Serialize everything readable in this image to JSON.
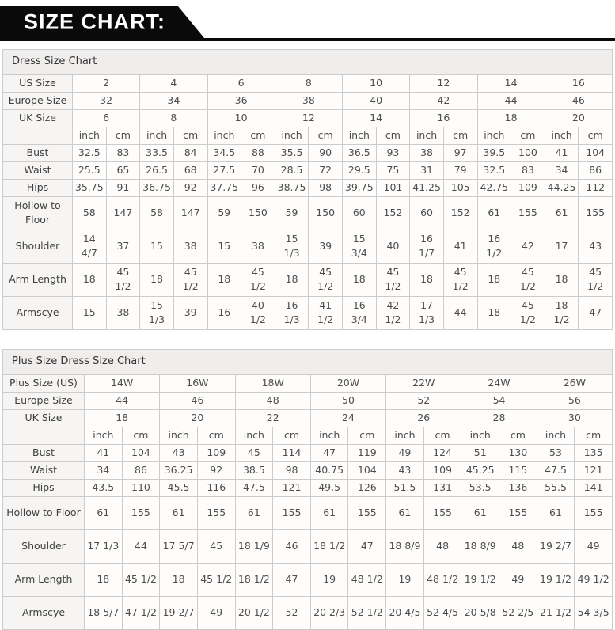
{
  "banner": {
    "title": "SIZE CHART:"
  },
  "unit_headers": [
    "inch",
    "cm"
  ],
  "tables": [
    {
      "title": "Dress Size Chart",
      "size_rows": [
        {
          "label": "US Size",
          "values": [
            "2",
            "4",
            "6",
            "8",
            "10",
            "12",
            "14",
            "16"
          ]
        },
        {
          "label": "Europe Size",
          "values": [
            "32",
            "34",
            "36",
            "38",
            "40",
            "42",
            "44",
            "46"
          ]
        },
        {
          "label": "UK Size",
          "values": [
            "6",
            "8",
            "10",
            "12",
            "14",
            "16",
            "18",
            "20"
          ]
        }
      ],
      "measurement_rows": [
        {
          "label": "Bust",
          "values": [
            "32.5",
            "83",
            "33.5",
            "84",
            "34.5",
            "88",
            "35.5",
            "90",
            "36.5",
            "93",
            "38",
            "97",
            "39.5",
            "100",
            "41",
            "104"
          ]
        },
        {
          "label": "Waist",
          "values": [
            "25.5",
            "65",
            "26.5",
            "68",
            "27.5",
            "70",
            "28.5",
            "72",
            "29.5",
            "75",
            "31",
            "79",
            "32.5",
            "83",
            "34",
            "86"
          ]
        },
        {
          "label": "Hips",
          "values": [
            "35.75",
            "91",
            "36.75",
            "92",
            "37.75",
            "96",
            "38.75",
            "98",
            "39.75",
            "101",
            "41.25",
            "105",
            "42.75",
            "109",
            "44.25",
            "112"
          ]
        },
        {
          "label": "Hollow to Floor",
          "values": [
            "58",
            "147",
            "58",
            "147",
            "59",
            "150",
            "59",
            "150",
            "60",
            "152",
            "60",
            "152",
            "61",
            "155",
            "61",
            "155"
          ]
        },
        {
          "label": "Shoulder",
          "values": [
            "14 4/7",
            "37",
            "15",
            "38",
            "15",
            "38",
            "15 1/3",
            "39",
            "15 3/4",
            "40",
            "16 1/7",
            "41",
            "16 1/2",
            "42",
            "17",
            "43"
          ]
        },
        {
          "label": "Arm Length",
          "values": [
            "18",
            "45 1/2",
            "18",
            "45 1/2",
            "18",
            "45 1/2",
            "18",
            "45 1/2",
            "18",
            "45 1/2",
            "18",
            "45 1/2",
            "18",
            "45 1/2",
            "18",
            "45 1/2"
          ]
        },
        {
          "label": "Armscye",
          "values": [
            "15",
            "38",
            "15 1/3",
            "39",
            "16",
            "40 1/2",
            "16 1/3",
            "41 1/2",
            "16 3/4",
            "42 1/2",
            "17 1/3",
            "44",
            "18",
            "45 1/2",
            "18 1/2",
            "47"
          ]
        }
      ]
    },
    {
      "title": "Plus Size Dress Size Chart",
      "size_rows": [
        {
          "label": "Plus Size (US)",
          "values": [
            "14W",
            "16W",
            "18W",
            "20W",
            "22W",
            "24W",
            "26W"
          ]
        },
        {
          "label": "Europe Size",
          "values": [
            "44",
            "46",
            "48",
            "50",
            "52",
            "54",
            "56"
          ]
        },
        {
          "label": "UK Size",
          "values": [
            "18",
            "20",
            "22",
            "24",
            "26",
            "28",
            "30"
          ]
        }
      ],
      "measurement_rows": [
        {
          "label": "Bust",
          "values": [
            "41",
            "104",
            "43",
            "109",
            "45",
            "114",
            "47",
            "119",
            "49",
            "124",
            "51",
            "130",
            "53",
            "135"
          ]
        },
        {
          "label": "Waist",
          "values": [
            "34",
            "86",
            "36.25",
            "92",
            "38.5",
            "98",
            "40.75",
            "104",
            "43",
            "109",
            "45.25",
            "115",
            "47.5",
            "121"
          ]
        },
        {
          "label": "Hips",
          "values": [
            "43.5",
            "110",
            "45.5",
            "116",
            "47.5",
            "121",
            "49.5",
            "126",
            "51.5",
            "131",
            "53.5",
            "136",
            "55.5",
            "141"
          ]
        },
        {
          "label": "Hollow to Floor",
          "values": [
            "61",
            "155",
            "61",
            "155",
            "61",
            "155",
            "61",
            "155",
            "61",
            "155",
            "61",
            "155",
            "61",
            "155"
          ]
        },
        {
          "label": "Shoulder",
          "values": [
            "17 1/3",
            "44",
            "17 5/7",
            "45",
            "18 1/9",
            "46",
            "18 1/2",
            "47",
            "18 8/9",
            "48",
            "18 8/9",
            "48",
            "19 2/7",
            "49"
          ]
        },
        {
          "label": "Arm Length",
          "values": [
            "18",
            "45 1/2",
            "18",
            "45 1/2",
            "18 1/2",
            "47",
            "19",
            "48 1/2",
            "19",
            "48 1/2",
            "19 1/2",
            "49",
            "19 1/2",
            "49 1/2"
          ]
        },
        {
          "label": "Armscye",
          "values": [
            "18 5/7",
            "47 1/2",
            "19 2/7",
            "49",
            "20 1/2",
            "52",
            "20 2/3",
            "52 1/2",
            "20 4/5",
            "52 4/5",
            "20 5/8",
            "52 2/5",
            "21 1/2",
            "54 3/5"
          ]
        }
      ]
    }
  ],
  "colors": {
    "banner_black": "#0b0a0b",
    "border": "#cccccc",
    "title_row_bg": "#f0eeed",
    "label_cell_bg": "#f6f5f3",
    "text": "#4d4d4d"
  }
}
